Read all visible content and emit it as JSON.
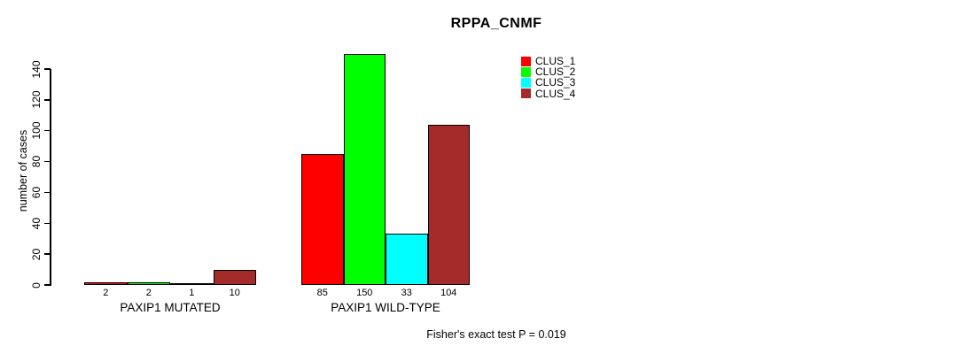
{
  "chart_data": {
    "type": "bar",
    "title": "RPPA_CNMF",
    "xlabel": "",
    "ylabel": "number of cases",
    "ylim": [
      0,
      140
    ],
    "yticks": [
      0,
      20,
      40,
      60,
      80,
      100,
      120,
      140
    ],
    "grid": false,
    "legend_position": "top-right",
    "categories": [
      "PAXIP1 MUTATED",
      "PAXIP1 WILD-TYPE"
    ],
    "series": [
      {
        "name": "CLUS_1",
        "color": "#ff0000",
        "values": [
          2,
          85
        ]
      },
      {
        "name": "CLUS_2",
        "color": "#00ff00",
        "values": [
          2,
          150
        ]
      },
      {
        "name": "CLUS_3",
        "color": "#00ffff",
        "values": [
          1,
          33
        ]
      },
      {
        "name": "CLUS_4",
        "color": "#a52a2a",
        "values": [
          10,
          104
        ]
      }
    ],
    "bar_value_labels": [
      [
        2,
        2,
        1,
        10
      ],
      [
        85,
        150,
        33,
        104
      ]
    ],
    "annotation": "Fisher's exact test P = 0.019"
  }
}
